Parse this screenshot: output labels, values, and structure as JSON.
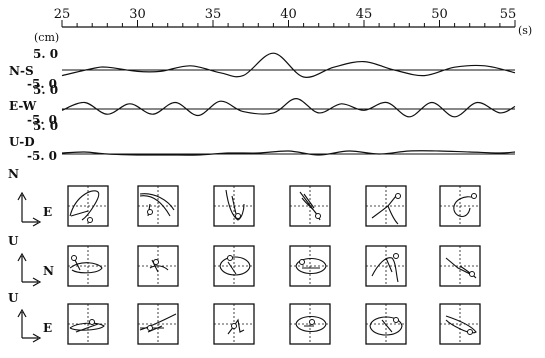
{
  "chart_data": {
    "type": "line",
    "x_axis": {
      "range": [
        25,
        55
      ],
      "ticks": [
        "25",
        "30",
        "35",
        "40",
        "45",
        "50",
        "55"
      ],
      "unit": "(s)"
    },
    "y_unit": "(cm)",
    "traces": [
      {
        "name": "N-S",
        "ticks": [
          "5. 0",
          "-5. 0"
        ],
        "ylim": [
          -5,
          5
        ],
        "t": [
          25,
          27,
          28,
          30,
          31.5,
          33.5,
          35.5,
          37,
          39,
          41,
          43,
          45,
          47,
          49,
          51,
          53,
          55
        ],
        "y": [
          -2.0,
          0.5,
          1.0,
          -0.5,
          -0.5,
          1.5,
          -1.0,
          -2.0,
          6.0,
          -2.5,
          1.0,
          3.0,
          0.0,
          -2.0,
          1.0,
          1.5,
          -1.0
        ]
      },
      {
        "name": "E-W",
        "ticks": [
          "5. 0",
          "-5. 0"
        ],
        "ylim": [
          -5,
          5
        ],
        "t": [
          25,
          26.5,
          28,
          29.5,
          31,
          32.5,
          34,
          35.5,
          37,
          39,
          40.5,
          42,
          43.5,
          45,
          46.5,
          48,
          49.5,
          51,
          52.5,
          54,
          55
        ],
        "y": [
          -0.5,
          2.5,
          -2.0,
          2.0,
          -2.0,
          2.5,
          -2.5,
          3.0,
          -1.0,
          -1.5,
          4.0,
          -1.5,
          2.0,
          -0.5,
          2.5,
          -3.0,
          2.5,
          -3.0,
          2.5,
          -1.5,
          1.0
        ]
      },
      {
        "name": "U-D",
        "ticks": [
          "5. 0",
          "-5. 0"
        ],
        "ylim": [
          -5,
          5
        ],
        "t": [
          25,
          26.5,
          28,
          30,
          32,
          34,
          36,
          38,
          40,
          42,
          44,
          46,
          48,
          50,
          52,
          54,
          55
        ],
        "y": [
          0.5,
          1.0,
          0.0,
          -0.5,
          -0.5,
          -0.5,
          0.5,
          0.5,
          1.5,
          -0.5,
          1.5,
          0.0,
          1.5,
          1.5,
          1.0,
          0.5,
          1.0
        ]
      }
    ],
    "particle_motion": {
      "rows": [
        {
          "vertical_label": "N",
          "horizontal_label": "E"
        },
        {
          "vertical_label": "U",
          "horizontal_label": "N"
        },
        {
          "vertical_label": "U",
          "horizontal_label": "E"
        }
      ],
      "columns": 6
    }
  }
}
